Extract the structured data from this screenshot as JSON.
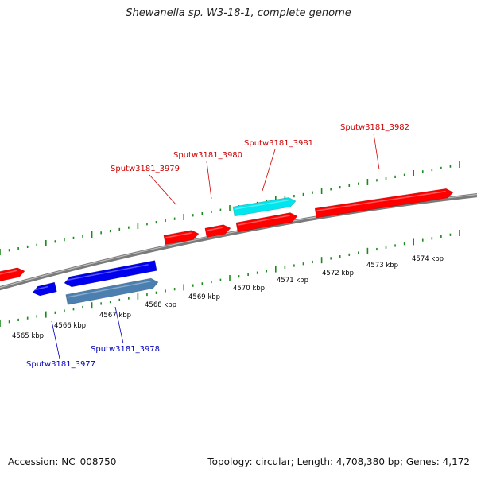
{
  "title": "Shewanella sp. W3-18-1, complete genome",
  "footer": {
    "accession": "Accession: NC_008750",
    "summary": "Topology: circular; Length: 4,708,380 bp; Genes: 4,172"
  },
  "colors": {
    "forward_gene": "#ff0000",
    "reverse_gene": "#0000ee",
    "forward_highlight": "#00e5ee",
    "reverse_highlight": "#4a7fb0",
    "backbone": "#8a8a8a",
    "tick": "#1a8a1a",
    "forward_label": "#cc0000",
    "reverse_label": "#0000bb",
    "scale_label": "#000000"
  },
  "scale": {
    "labels": [
      "4565 kbp",
      "4566 kbp",
      "4567 kbp",
      "4568 kbp",
      "4569 kbp",
      "4570 kbp",
      "4571 kbp",
      "4572 kbp",
      "4573 kbp",
      "4574 kbp"
    ]
  },
  "genes": {
    "forward_labels": [
      "Sputw3181_3979",
      "Sputw3181_3980",
      "Sputw3181_3981",
      "Sputw3181_3982"
    ],
    "reverse_labels": [
      "Sputw3181_3977",
      "Sputw3181_3978"
    ]
  }
}
